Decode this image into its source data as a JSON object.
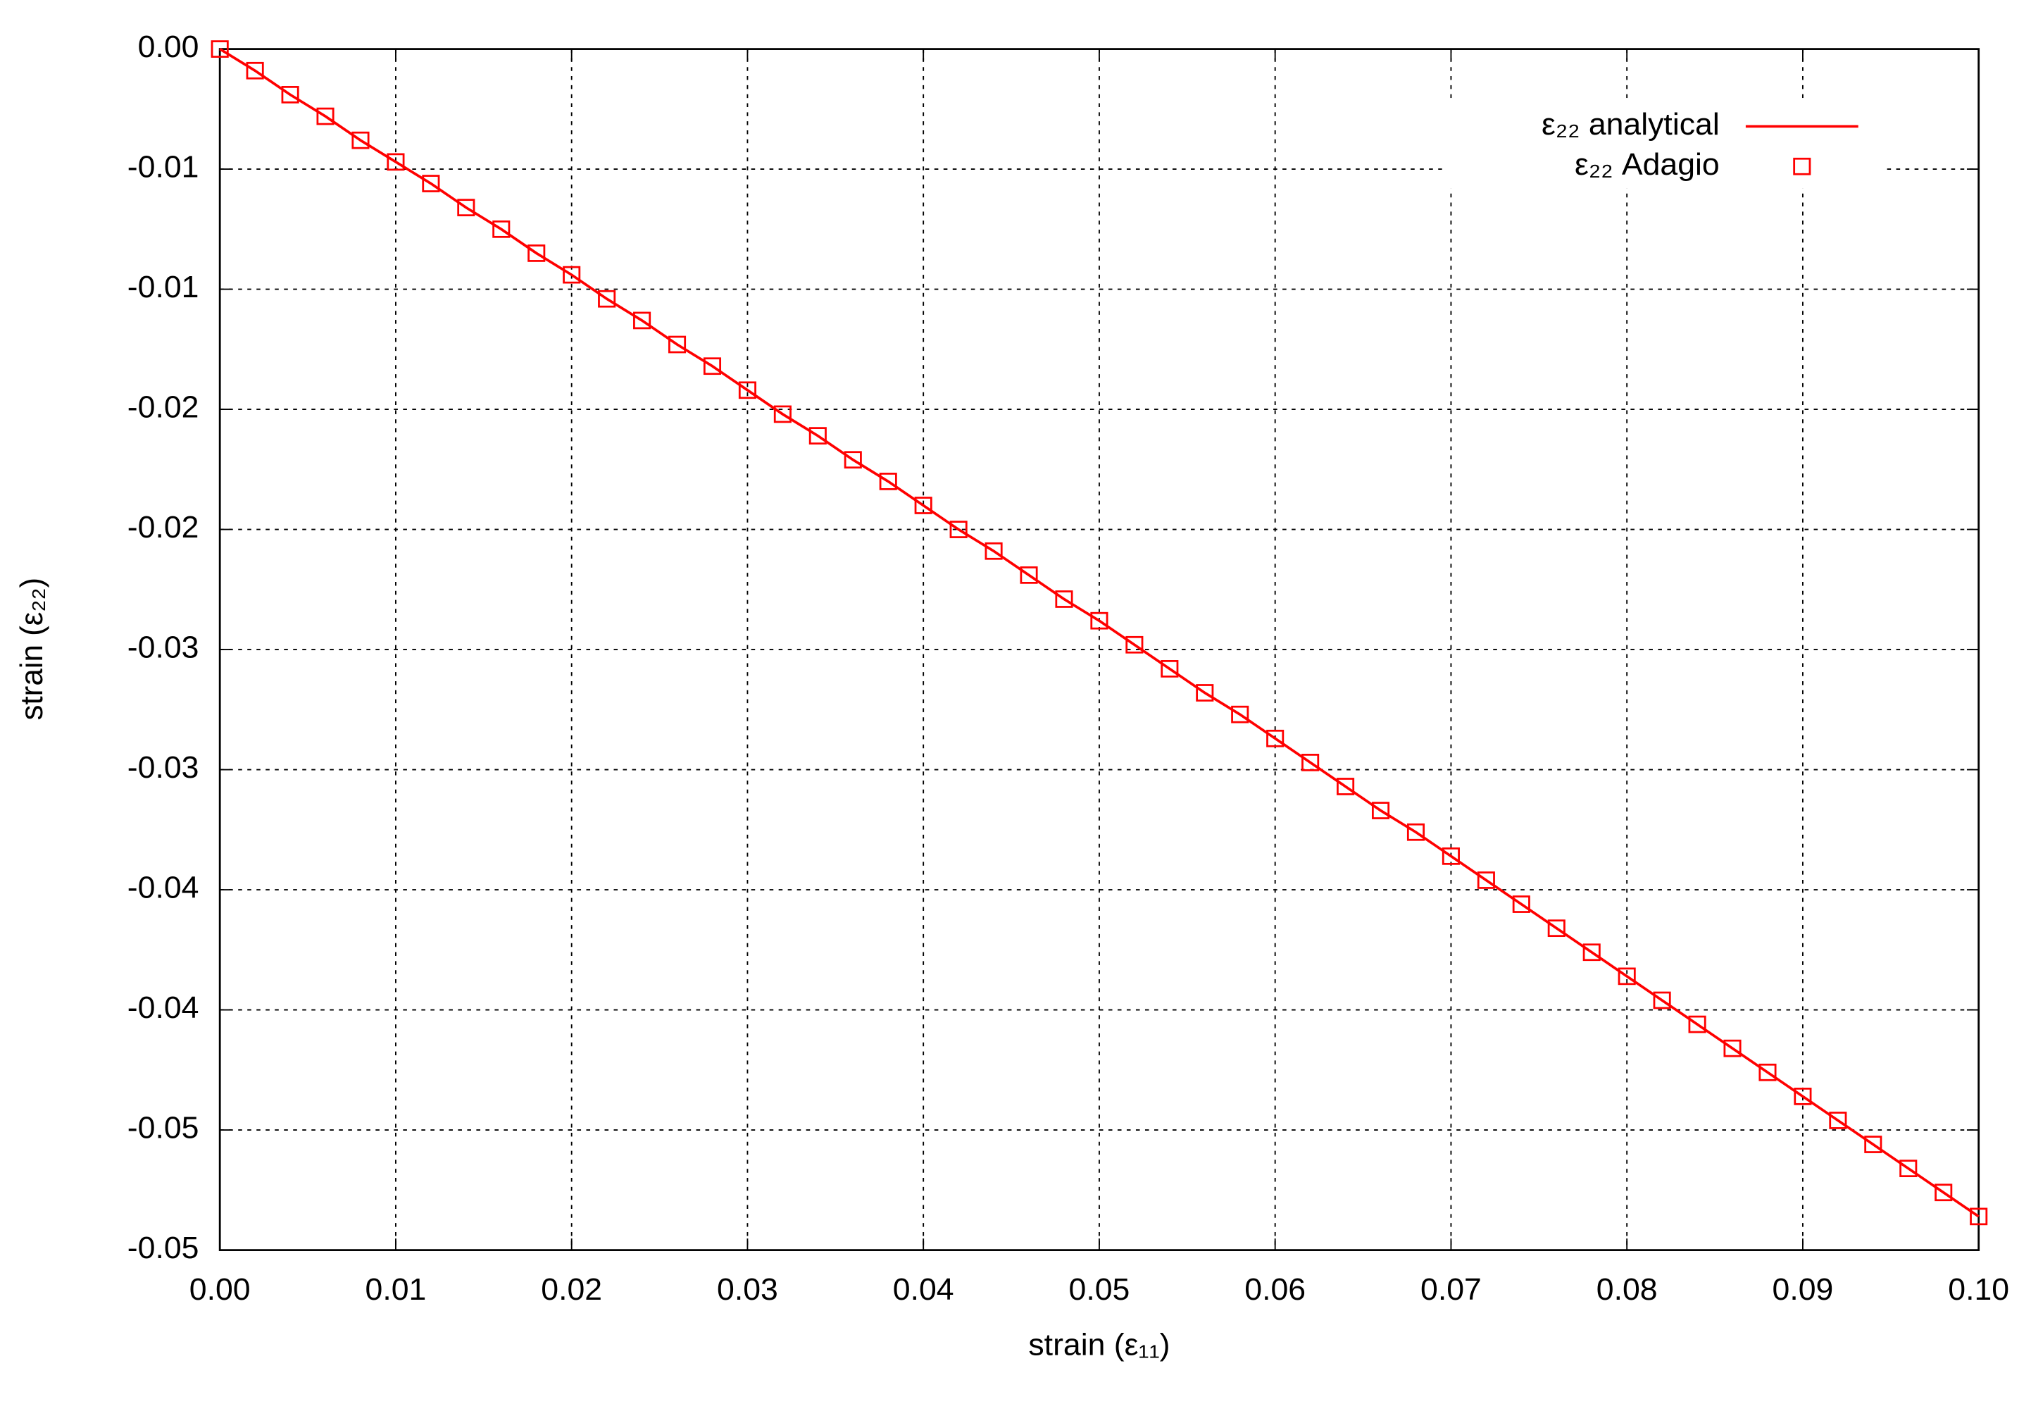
{
  "chart_data": {
    "type": "line",
    "x_label": "strain (ε₁₁)",
    "y_label": "strain (ε₂₂)",
    "xlim": [
      0,
      0.1
    ],
    "ylim": [
      -0.05,
      0
    ],
    "xticks": [
      {
        "value": 0,
        "label": "0.00"
      },
      0.01,
      0.02,
      0.03,
      0.04,
      0.05,
      0.06,
      0.07,
      0.08,
      0.09,
      {
        "value": 0.1,
        "label": "0.10"
      }
    ],
    "yticks": [
      {
        "value": 0,
        "label": "0.00"
      },
      {
        "value": -0.005,
        "label": "-0.01"
      },
      -0.01,
      {
        "value": -0.015,
        "label": "-0.02"
      },
      -0.02,
      {
        "value": -0.025,
        "label": "-0.03"
      },
      -0.03,
      {
        "value": -0.035,
        "label": "-0.04"
      },
      -0.04,
      {
        "value": -0.045,
        "label": "-0.05"
      },
      -0.05
    ],
    "grid": true,
    "legend": "top-right",
    "x": [
      0,
      0.002,
      0.004,
      0.006,
      0.008,
      0.01,
      0.012,
      0.014,
      0.016,
      0.018,
      0.02,
      0.022,
      0.024,
      0.026,
      0.028,
      0.03,
      0.032,
      0.034,
      0.036,
      0.038,
      0.04,
      0.042,
      0.044,
      0.046,
      0.048,
      0.05,
      0.052,
      0.054,
      0.056,
      0.058,
      0.06,
      0.062,
      0.064,
      0.066,
      0.068,
      0.07,
      0.072,
      0.074,
      0.076,
      0.078,
      0.08,
      0.082,
      0.084,
      0.086,
      0.088,
      0.09,
      0.092,
      0.094,
      0.096,
      0.098,
      0.1
    ],
    "series": [
      {
        "name": "ε₂₂ analytical",
        "color": "#ff0000",
        "mode": "line",
        "values": [
          0,
          -0.0009,
          -0.0019,
          -0.0028,
          -0.0038,
          -0.0047,
          -0.0056,
          -0.0066,
          -0.0075,
          -0.0085,
          -0.0094,
          -0.0104,
          -0.0113,
          -0.0123,
          -0.0132,
          -0.0142,
          -0.0152,
          -0.0161,
          -0.0171,
          -0.018,
          -0.019,
          -0.02,
          -0.0209,
          -0.0219,
          -0.0229,
          -0.0238,
          -0.0248,
          -0.0258,
          -0.0268,
          -0.0277,
          -0.0287,
          -0.0297,
          -0.0307,
          -0.0317,
          -0.0326,
          -0.0336,
          -0.0346,
          -0.0356,
          -0.0366,
          -0.0376,
          -0.0386,
          -0.0396,
          -0.0406,
          -0.0416,
          -0.0426,
          -0.0436,
          -0.0446,
          -0.0456,
          -0.0466,
          -0.0476,
          -0.0486
        ]
      },
      {
        "name": "ε₂₂ Adagio",
        "color": "#ff0000",
        "mode": "points",
        "values": [
          0,
          -0.0009,
          -0.0019,
          -0.0028,
          -0.0038,
          -0.0047,
          -0.0056,
          -0.0066,
          -0.0075,
          -0.0085,
          -0.0094,
          -0.0104,
          -0.0113,
          -0.0123,
          -0.0132,
          -0.0142,
          -0.0152,
          -0.0161,
          -0.0171,
          -0.018,
          -0.019,
          -0.02,
          -0.0209,
          -0.0219,
          -0.0229,
          -0.0238,
          -0.0248,
          -0.0258,
          -0.0268,
          -0.0277,
          -0.0287,
          -0.0297,
          -0.0307,
          -0.0317,
          -0.0326,
          -0.0336,
          -0.0346,
          -0.0356,
          -0.0366,
          -0.0376,
          -0.0386,
          -0.0396,
          -0.0406,
          -0.0416,
          -0.0426,
          -0.0436,
          -0.0446,
          -0.0456,
          -0.0466,
          -0.0476,
          -0.0486
        ]
      }
    ]
  }
}
